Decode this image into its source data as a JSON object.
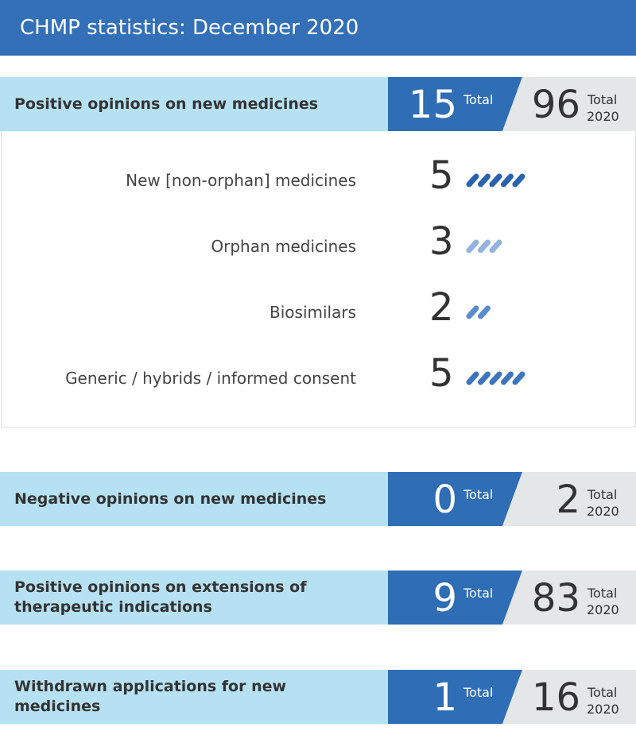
{
  "header": {
    "title": "CHMP statistics: December 2020"
  },
  "sections": [
    {
      "title": "Positive opinions on new medicines",
      "month_value": 15,
      "month_label": "Total",
      "year_value": 96,
      "year_label": "Total",
      "year": "2020",
      "breakdown": [
        {
          "label": "New [non-orphan] medicines",
          "value": 5,
          "color": "#2a63ad"
        },
        {
          "label": "Orphan medicines",
          "value": 3,
          "color": "#93b3dd"
        },
        {
          "label": "Biosimilars",
          "value": 2,
          "color": "#5b8dcc"
        },
        {
          "label": "Generic / hybrids / informed consent",
          "value": 5,
          "color": "#3f75bd"
        }
      ]
    },
    {
      "title": "Negative opinions on new medicines",
      "month_value": 0,
      "month_label": "Total",
      "year_value": 2,
      "year_label": "Total",
      "year": "2020"
    },
    {
      "title": "Positive opinions on extensions of therapeutic indications",
      "month_value": 9,
      "month_label": "Total",
      "year_value": 83,
      "year_label": "Total",
      "year": "2020"
    },
    {
      "title": "Withdrawn applications for new medicines",
      "month_value": 1,
      "month_label": "Total",
      "year_value": 16,
      "year_label": "Total",
      "year": "2020"
    }
  ]
}
